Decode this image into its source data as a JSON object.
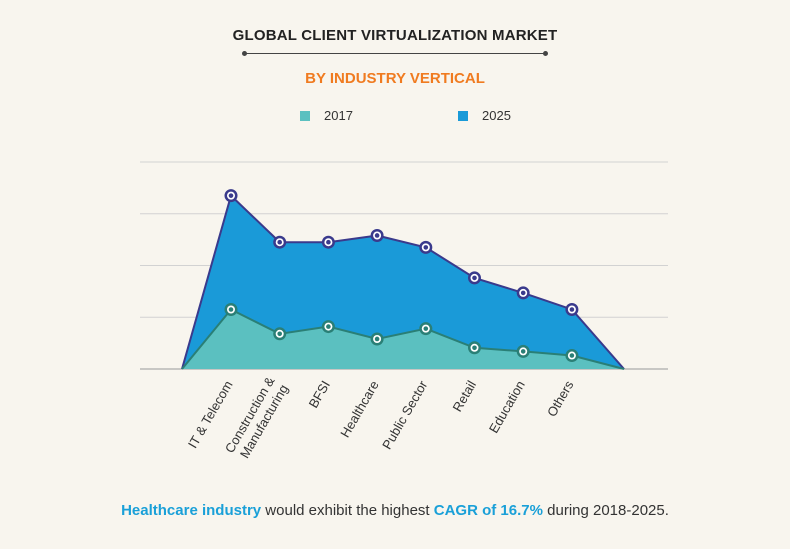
{
  "title": "GLOBAL CLIENT VIRTUALIZATION MARKET",
  "subtitle": "BY INDUSTRY VERTICAL",
  "legend": [
    {
      "label": "2017",
      "color": "#5bc0c0"
    },
    {
      "label": "2025",
      "color": "#1a9ad8"
    }
  ],
  "footnote": {
    "part1": "Healthcare industry",
    "part2": " would exhibit the highest ",
    "part3": "CAGR of 16.7%",
    "part4": " during 2018-2025."
  },
  "chart_data": {
    "type": "area",
    "categories": [
      "IT & Telecom",
      "Construction & Manufacturing",
      "BFSI",
      "Healthcare",
      "Public Sector",
      "Retail",
      "Education",
      "Others"
    ],
    "series": [
      {
        "name": "2017",
        "values": [
          1.15,
          0.68,
          0.82,
          0.58,
          0.78,
          0.41,
          0.34,
          0.26
        ],
        "color": "#5bc0c0"
      },
      {
        "name": "2025",
        "values": [
          3.35,
          2.45,
          2.45,
          2.58,
          2.35,
          1.76,
          1.47,
          1.15
        ],
        "color": "#1a9ad8"
      }
    ],
    "ylim": [
      0,
      4
    ],
    "grid": true,
    "legend_position": "top"
  }
}
